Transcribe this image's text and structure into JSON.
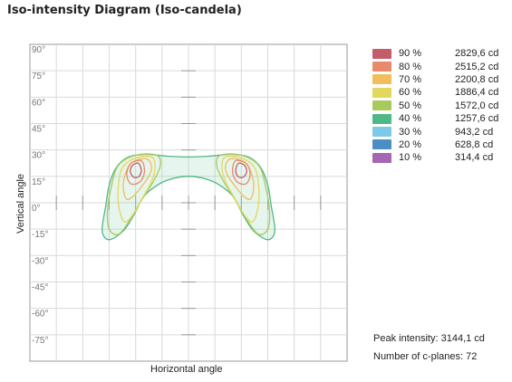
{
  "title": "Iso-intensity Diagram (Iso-candela)",
  "chart_data": {
    "type": "contour",
    "xlabel": "Horizontal angle",
    "ylabel": "Vertical angle",
    "ylim": [
      -90,
      90
    ],
    "y_ticks": [
      "90°",
      "75°",
      "60°",
      "45°",
      "30°",
      "15°",
      "0°",
      "-15°",
      "-30°",
      "-45°",
      "-60°",
      "-75°"
    ],
    "grid": true,
    "legend_position": "right",
    "levels": [
      {
        "percent": "90 %",
        "value": "2829,6 cd",
        "color": "#c45c6a"
      },
      {
        "percent": "80 %",
        "value": "2515,2 cd",
        "color": "#e88a6a"
      },
      {
        "percent": "70 %",
        "value": "2200,8 cd",
        "color": "#f2bd5c"
      },
      {
        "percent": "60 %",
        "value": "1886,4 cd",
        "color": "#e4d85c"
      },
      {
        "percent": "50 %",
        "value": "1572,0 cd",
        "color": "#a8c95c"
      },
      {
        "percent": "40 %",
        "value": "1257,6 cd",
        "color": "#4fb887"
      },
      {
        "percent": "30 %",
        "value": "943,2 cd",
        "color": "#7cc9e8"
      },
      {
        "percent": "20 %",
        "value": "628,8 cd",
        "color": "#4a8ec4"
      },
      {
        "percent": "10 %",
        "value": "314,4 cd",
        "color": "#a566b3"
      }
    ]
  },
  "stats": {
    "peak": "Peak intensity: 3144,1 cd",
    "planes": "Number of c-planes: 72"
  }
}
